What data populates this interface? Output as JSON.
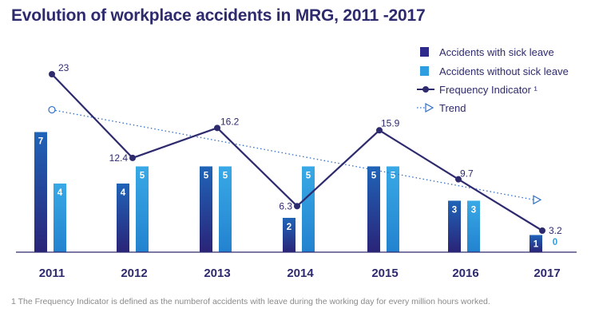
{
  "chart_data": {
    "type": "bar",
    "title": "Evolution of workplace accidents in MRG, 2011 -2017",
    "categories": [
      "2011",
      "2012",
      "2013",
      "2014",
      "2015",
      "2016",
      "2017"
    ],
    "series": [
      {
        "name": "Accidents with sick leave",
        "kind": "bar",
        "values": [
          7,
          4,
          5,
          2,
          5,
          3,
          1
        ],
        "color": "#2e2a8c"
      },
      {
        "name": "Accidents without sick leave",
        "kind": "bar",
        "values": [
          4,
          5,
          5,
          5,
          5,
          3,
          0
        ],
        "color": "#2e9ee0"
      },
      {
        "name": "Frequency Indicator ¹",
        "kind": "line",
        "values": [
          23,
          12.4,
          16.2,
          6.3,
          15.9,
          9.7,
          3.2
        ],
        "color": "#2e2a6e"
      },
      {
        "name": "Trend",
        "kind": "dotted-line",
        "start": 18.5,
        "end": 7.1,
        "color": "#2e6fc4"
      }
    ],
    "legend_position": "top-right",
    "grid": false
  },
  "footnote": "1 The Frequency Indicator is defined as the numberof accidents with leave during the working day for every million hours worked."
}
